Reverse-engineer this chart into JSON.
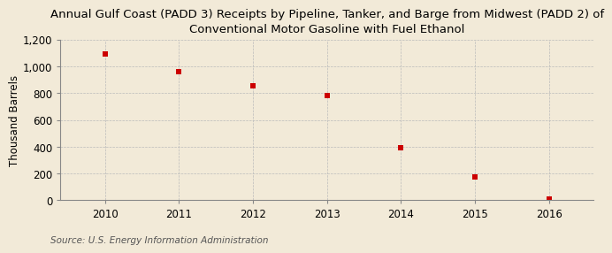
{
  "title": "Annual Gulf Coast (PADD 3) Receipts by Pipeline, Tanker, and Barge from Midwest (PADD 2) of\nConventional Motor Gasoline with Fuel Ethanol",
  "ylabel": "Thousand Barrels",
  "source": "Source: U.S. Energy Information Administration",
  "years": [
    2010,
    2011,
    2012,
    2013,
    2014,
    2015,
    2016
  ],
  "values": [
    1090,
    963,
    852,
    782,
    393,
    175,
    10
  ],
  "marker_color": "#cc0000",
  "marker": "s",
  "marker_size": 4,
  "ylim": [
    0,
    1200
  ],
  "yticks": [
    0,
    200,
    400,
    600,
    800,
    1000,
    1200
  ],
  "ytick_labels": [
    "0",
    "200",
    "400",
    "600",
    "800",
    "1,000",
    "1,200"
  ],
  "xlim": [
    2009.4,
    2016.6
  ],
  "xticks": [
    2010,
    2011,
    2012,
    2013,
    2014,
    2015,
    2016
  ],
  "background_color": "#f2ead8",
  "plot_bg_color": "#f2ead8",
  "grid_color": "#bbbbbb",
  "title_fontsize": 9.5,
  "axis_fontsize": 8.5,
  "ylabel_fontsize": 8.5,
  "source_fontsize": 7.5
}
